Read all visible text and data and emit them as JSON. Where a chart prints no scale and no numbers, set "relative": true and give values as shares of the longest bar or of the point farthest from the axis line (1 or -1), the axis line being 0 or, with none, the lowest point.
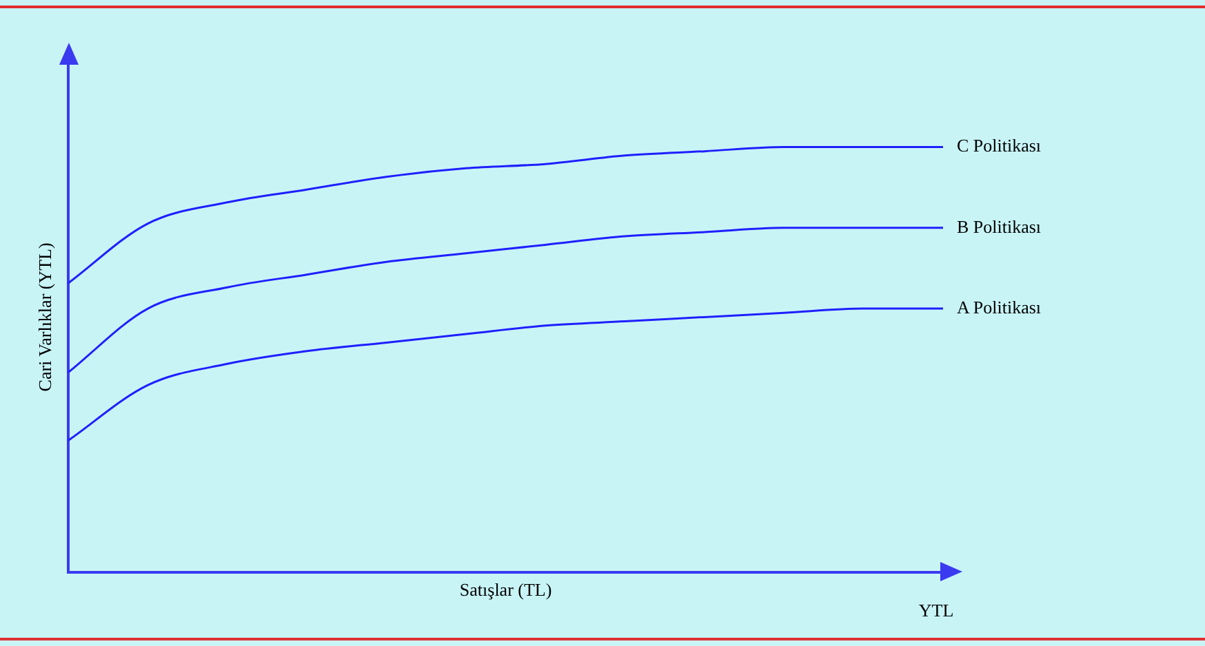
{
  "chart_data": {
    "type": "line",
    "relative": true,
    "xlabel": "Satışlar (TL)",
    "ylabel": "Cari Varlıklar (YTL)",
    "annotations": [
      "YTL"
    ],
    "categories": [
      null,
      null,
      null,
      null,
      null,
      null,
      null,
      null,
      null,
      null,
      null,
      null
    ],
    "marker": "none",
    "line_style": "solid",
    "grid": false,
    "legend": false,
    "tick_labels": false,
    "series": [
      {
        "name": "C Politikası",
        "color": "#1f1fff",
        "values": [
          0.68,
          0.82,
          0.87,
          0.9,
          0.93,
          0.95,
          0.96,
          0.98,
          0.99,
          1.0,
          1.0,
          1.0
        ]
      },
      {
        "name": "B Politikası",
        "color": "#1f1fff",
        "values": [
          0.47,
          0.62,
          0.67,
          0.7,
          0.73,
          0.75,
          0.77,
          0.79,
          0.8,
          0.81,
          0.81,
          0.81
        ]
      },
      {
        "name": "A Politikası",
        "color": "#1f1fff",
        "values": [
          0.31,
          0.44,
          0.49,
          0.52,
          0.54,
          0.56,
          0.58,
          0.59,
          0.6,
          0.61,
          0.62,
          0.62
        ]
      }
    ]
  }
}
